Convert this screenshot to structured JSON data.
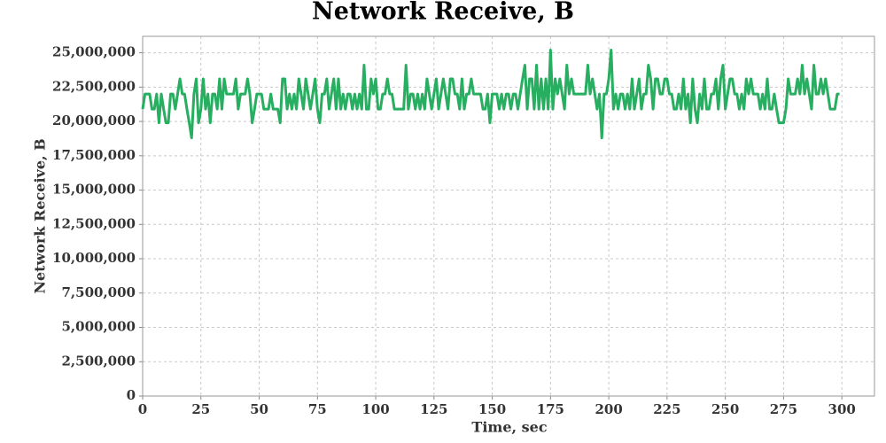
{
  "chart_data": {
    "type": "line",
    "title": "Network Receive, B",
    "x_label": "Time, sec",
    "y_label": "Network Receive, B",
    "color": "#27ae60",
    "grid": true,
    "xlim": [
      0,
      314
    ],
    "xticks": [
      0,
      25,
      50,
      75,
      100,
      125,
      150,
      175,
      200,
      225,
      250,
      275,
      300
    ],
    "ylim": [
      0,
      26200000
    ],
    "yticks": [
      {
        "value": 0,
        "label": "0"
      },
      {
        "value": 2500000,
        "label": "2,500,000"
      },
      {
        "value": 5000000,
        "label": "5,000,000"
      },
      {
        "value": 7500000,
        "label": "7,500,000"
      },
      {
        "value": 10000000,
        "label": "10,000,000"
      },
      {
        "value": 12500000,
        "label": "12,500,000"
      },
      {
        "value": 15000000,
        "label": "15,000,000"
      },
      {
        "value": 17500000,
        "label": "17,500,000"
      },
      {
        "value": 20000000,
        "label": "20,000,000"
      },
      {
        "value": 22500000,
        "label": "22,500,000"
      },
      {
        "value": 25000000,
        "label": "25,000,000"
      }
    ],
    "x": [
      0,
      1,
      2,
      3,
      4,
      5,
      6,
      7,
      8,
      9,
      10,
      11,
      12,
      13,
      14,
      15,
      16,
      17,
      18,
      19,
      20,
      21,
      22,
      23,
      24,
      25,
      26,
      27,
      28,
      29,
      30,
      31,
      32,
      33,
      34,
      35,
      36,
      37,
      38,
      39,
      40,
      41,
      42,
      43,
      44,
      45,
      46,
      47,
      48,
      49,
      50,
      51,
      52,
      53,
      54,
      55,
      56,
      57,
      58,
      59,
      60,
      61,
      62,
      63,
      64,
      65,
      66,
      67,
      68,
      69,
      70,
      71,
      72,
      73,
      74,
      75,
      76,
      77,
      78,
      79,
      80,
      81,
      82,
      83,
      84,
      85,
      86,
      87,
      88,
      89,
      90,
      91,
      92,
      93,
      94,
      95,
      96,
      97,
      98,
      99,
      100,
      101,
      102,
      103,
      104,
      105,
      106,
      107,
      108,
      109,
      110,
      111,
      112,
      113,
      114,
      115,
      116,
      117,
      118,
      119,
      120,
      121,
      122,
      123,
      124,
      125,
      126,
      127,
      128,
      129,
      130,
      131,
      132,
      133,
      134,
      135,
      136,
      137,
      138,
      139,
      140,
      141,
      142,
      143,
      144,
      145,
      146,
      147,
      148,
      149,
      150,
      151,
      152,
      153,
      154,
      155,
      156,
      157,
      158,
      159,
      160,
      161,
      162,
      163,
      164,
      165,
      166,
      167,
      168,
      169,
      170,
      171,
      172,
      173,
      174,
      175,
      176,
      177,
      178,
      179,
      180,
      181,
      182,
      183,
      184,
      185,
      186,
      187,
      188,
      189,
      190,
      191,
      192,
      193,
      194,
      195,
      196,
      197,
      198,
      199,
      200,
      201,
      202,
      203,
      204,
      205,
      206,
      207,
      208,
      209,
      210,
      211,
      212,
      213,
      214,
      215,
      216,
      217,
      218,
      219,
      220,
      221,
      222,
      223,
      224,
      225,
      226,
      227,
      228,
      229,
      230,
      231,
      232,
      233,
      234,
      235,
      236,
      237,
      238,
      239,
      240,
      241,
      242,
      243,
      244,
      245,
      246,
      247,
      248,
      249,
      250,
      251,
      252,
      253,
      254,
      255,
      256,
      257,
      258,
      259,
      260,
      261,
      262,
      263,
      264,
      265,
      266,
      267,
      268,
      269,
      270,
      271,
      272,
      273,
      274,
      275,
      276,
      277,
      278,
      279,
      280,
      281,
      282,
      283,
      284,
      285,
      286,
      287,
      288,
      289,
      290,
      291,
      292,
      293,
      294,
      295,
      296,
      297,
      298,
      299
    ],
    "values": [
      20900000,
      22000000,
      22000000,
      22000000,
      20900000,
      20900000,
      22000000,
      19900000,
      22000000,
      20900000,
      19900000,
      19900000,
      22000000,
      22000000,
      20900000,
      22000000,
      23100000,
      22000000,
      22000000,
      20900000,
      19900000,
      18800000,
      22000000,
      23100000,
      19900000,
      20900000,
      23100000,
      20900000,
      22000000,
      19900000,
      22000000,
      22000000,
      20900000,
      23100000,
      20900000,
      23100000,
      22000000,
      22000000,
      22000000,
      22000000,
      23100000,
      20900000,
      22000000,
      22000000,
      22000000,
      23100000,
      22000000,
      19900000,
      20900000,
      22000000,
      22000000,
      22000000,
      20900000,
      20900000,
      20900000,
      22000000,
      20900000,
      20900000,
      20900000,
      19900000,
      23100000,
      23100000,
      20900000,
      22000000,
      20900000,
      22000000,
      20900000,
      23100000,
      22000000,
      20900000,
      23100000,
      22000000,
      20900000,
      22000000,
      23100000,
      20900000,
      19900000,
      22000000,
      22000000,
      23100000,
      20900000,
      22000000,
      23100000,
      20900000,
      23100000,
      20900000,
      22000000,
      20900000,
      22000000,
      22000000,
      20900000,
      22000000,
      20900000,
      22000000,
      20900000,
      24100000,
      20900000,
      20900000,
      23100000,
      22000000,
      23100000,
      20900000,
      20900000,
      22000000,
      22000000,
      23100000,
      22000000,
      22000000,
      20900000,
      20900000,
      20900000,
      20900000,
      20900000,
      24100000,
      20900000,
      22000000,
      22000000,
      20900000,
      22000000,
      20900000,
      22000000,
      20900000,
      23100000,
      22000000,
      20900000,
      22000000,
      23100000,
      20900000,
      22000000,
      23100000,
      22000000,
      20900000,
      23100000,
      23100000,
      22000000,
      22000000,
      20900000,
      23100000,
      20900000,
      22000000,
      22000000,
      23100000,
      22000000,
      22000000,
      22000000,
      22000000,
      20900000,
      20900000,
      22000000,
      19900000,
      22000000,
      22000000,
      22000000,
      20900000,
      22000000,
      20900000,
      22000000,
      22000000,
      20900000,
      22000000,
      22000000,
      20900000,
      22000000,
      23100000,
      24100000,
      20900000,
      23100000,
      23100000,
      20900000,
      24100000,
      20900000,
      23100000,
      20900000,
      23100000,
      20900000,
      25200000,
      20900000,
      23100000,
      22000000,
      23100000,
      22000000,
      20900000,
      24100000,
      22000000,
      23100000,
      22000000,
      22000000,
      22000000,
      22000000,
      22000000,
      22000000,
      24100000,
      22000000,
      23100000,
      22000000,
      20900000,
      22000000,
      18800000,
      22000000,
      22000000,
      23100000,
      25200000,
      20900000,
      22000000,
      20900000,
      22000000,
      22000000,
      20900000,
      22000000,
      20900000,
      23100000,
      20900000,
      22000000,
      23100000,
      20900000,
      22000000,
      22000000,
      24100000,
      23100000,
      20900000,
      23100000,
      23100000,
      22000000,
      22000000,
      23100000,
      23100000,
      22000000,
      22000000,
      20900000,
      20900000,
      22000000,
      20900000,
      23100000,
      20900000,
      22000000,
      19900000,
      23100000,
      20900000,
      19900000,
      22000000,
      20900000,
      23100000,
      20900000,
      20900000,
      22000000,
      22000000,
      23100000,
      20900000,
      23100000,
      24100000,
      20900000,
      22000000,
      23100000,
      23100000,
      22000000,
      22000000,
      20900000,
      22000000,
      20900000,
      23100000,
      22000000,
      23100000,
      22000000,
      22000000,
      22000000,
      20900000,
      22000000,
      20900000,
      23100000,
      20900000,
      20900000,
      22000000,
      20900000,
      19900000,
      19900000,
      19900000,
      20900000,
      23100000,
      22000000,
      22000000,
      22000000,
      23100000,
      22000000,
      24100000,
      22000000,
      23100000,
      22000000,
      20900000,
      24100000,
      22000000,
      22000000,
      23100000,
      22000000,
      23100000,
      22000000,
      20900000,
      20900000,
      20900000,
      22000000,
      22000000
    ]
  }
}
